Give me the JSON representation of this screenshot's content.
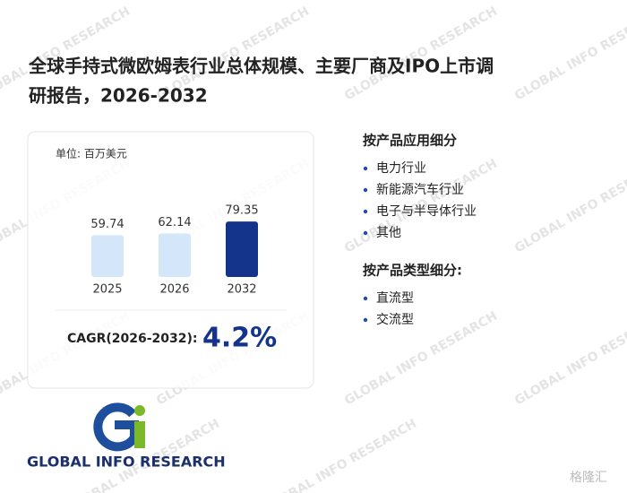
{
  "title_lines": [
    "全球手持式微欧姆表行业总体规模、主要厂商及IPO上市调",
    "研报告，2026-2032"
  ],
  "chart_data": {
    "type": "bar",
    "unit": "单位: 百万美元",
    "categories": [
      "2025",
      "2026",
      "2032"
    ],
    "values": [
      59.74,
      62.14,
      79.35
    ],
    "colors": [
      "#d4e6fa",
      "#d4e6fa",
      "#14348c"
    ],
    "cagr_label": "CAGR(2026-2032):",
    "cagr_value": "4.2%"
  },
  "sections": [
    {
      "heading": "按产品应用细分",
      "items": [
        "电力行业",
        "新能源汽车行业",
        "电子与半导体行业",
        "其他"
      ]
    },
    {
      "heading": "按产品类型细分:",
      "items": [
        "直流型",
        "交流型"
      ]
    }
  ],
  "logo_text": "GLOBAL INFO RESEARCH",
  "watermark": "GLOBAL INFO RESEARCH",
  "corner_mark": "格隆汇"
}
